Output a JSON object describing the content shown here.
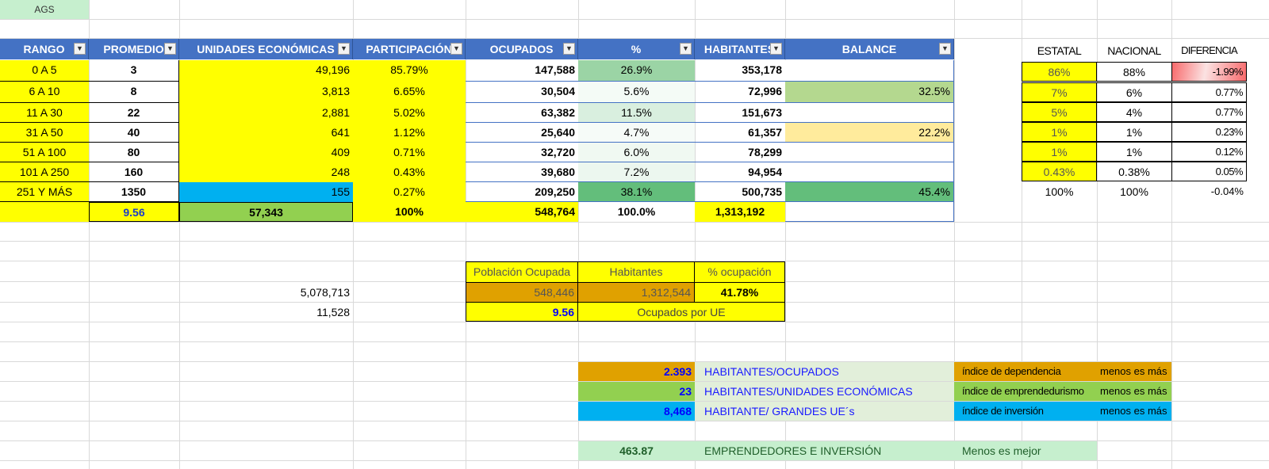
{
  "sheet_label": "AGS",
  "main_table": {
    "headers": {
      "rango": "RANGO",
      "promedio": "PROMEDIO",
      "unidades": "UNIDADES ECONÓMICAS",
      "participacion": "PARTICIPACIÓN",
      "ocupados": "OCUPADOS",
      "pct": "%",
      "habitantes": "HABITANTES",
      "balance": "BALANCE"
    },
    "rows": [
      {
        "rango": "0 A 5",
        "promedio": "3",
        "unidades": "49,196",
        "participacion": "85.79%",
        "ocupados": "147,588",
        "pct": "26.9%",
        "habitantes": "353,178",
        "balance": ""
      },
      {
        "rango": "6 A 10",
        "promedio": "8",
        "unidades": "3,813",
        "participacion": "6.65%",
        "ocupados": "30,504",
        "pct": "5.6%",
        "habitantes": "72,996",
        "balance": "32.5%"
      },
      {
        "rango": "11 A 30",
        "promedio": "22",
        "unidades": "2,881",
        "participacion": "5.02%",
        "ocupados": "63,382",
        "pct": "11.5%",
        "habitantes": "151,673",
        "balance": ""
      },
      {
        "rango": "31 A 50",
        "promedio": "40",
        "unidades": "641",
        "participacion": "1.12%",
        "ocupados": "25,640",
        "pct": "4.7%",
        "habitantes": "61,357",
        "balance": "22.2%"
      },
      {
        "rango": "51 A 100",
        "promedio": "80",
        "unidades": "409",
        "participacion": "0.71%",
        "ocupados": "32,720",
        "pct": "6.0%",
        "habitantes": "78,299",
        "balance": ""
      },
      {
        "rango": "101 A 250",
        "promedio": "160",
        "unidades": "248",
        "participacion": "0.43%",
        "ocupados": "39,680",
        "pct": "7.2%",
        "habitantes": "94,954",
        "balance": ""
      },
      {
        "rango": "251 Y MÁS",
        "promedio": "1350",
        "unidades": "155",
        "participacion": "0.27%",
        "ocupados": "209,250",
        "pct": "38.1%",
        "habitantes": "500,735",
        "balance": "45.4%"
      }
    ],
    "totals": {
      "promedio": "9.56",
      "unidades": "57,343",
      "participacion": "100%",
      "ocupados": "548,764",
      "pct": "100.0%",
      "habitantes": "1,313,192"
    }
  },
  "comparison": {
    "headers": {
      "estatal": "ESTATAL",
      "nacional": "NACIONAL",
      "diferencia": "DIFERENCIA"
    },
    "rows": [
      {
        "estatal": "86%",
        "nacional": "88%",
        "diferencia": "-1.99%"
      },
      {
        "estatal": "7%",
        "nacional": "6%",
        "diferencia": "0.77%"
      },
      {
        "estatal": "5%",
        "nacional": "4%",
        "diferencia": "0.77%"
      },
      {
        "estatal": "1%",
        "nacional": "1%",
        "diferencia": "0.23%"
      },
      {
        "estatal": "1%",
        "nacional": "1%",
        "diferencia": "0.12%"
      },
      {
        "estatal": "0.43%",
        "nacional": "0.38%",
        "diferencia": "0.05%"
      }
    ],
    "totals": {
      "estatal": "100%",
      "nacional": "100%",
      "diferencia": "-0.04%"
    }
  },
  "side_values": {
    "v1": "5,078,713",
    "v2": "11,528"
  },
  "occupation_box": {
    "h_poblacion": "Población Ocupada",
    "h_habitantes": "Habitantes",
    "h_pct": "% ocupación",
    "poblacion": "548,446",
    "habitantes": "1,312,544",
    "pct": "41.78%",
    "ocupados_ue_value": "9.56",
    "ocupados_ue_label": "Ocupados por UE"
  },
  "indices": [
    {
      "value": "2.393",
      "label": "HABITANTES/OCUPADOS",
      "index": "índice de dependencia",
      "note": "menos es más"
    },
    {
      "value": "23",
      "label": "HABITANTES/UNIDADES ECONÓMICAS",
      "index": "índice de emprendedurismo",
      "note": "menos es más"
    },
    {
      "value": "8,468",
      "label": "HABITANTE/ GRANDES UE´s",
      "index": "índice de inversión",
      "note": "menos es más"
    }
  ],
  "summary": {
    "value": "463.87",
    "label": "EMPRENDEDORES E INVERSIÓN",
    "note": "Menos es mejor"
  },
  "colors": {
    "header_blue": "#4472c4",
    "highlight_yellow": "#ffff00",
    "cyan": "#00b0f0",
    "green": "#92d050",
    "orange": "#e0a100",
    "light_green": "#e2efda"
  },
  "icons": {
    "filter": "filter-dropdown-icon"
  }
}
